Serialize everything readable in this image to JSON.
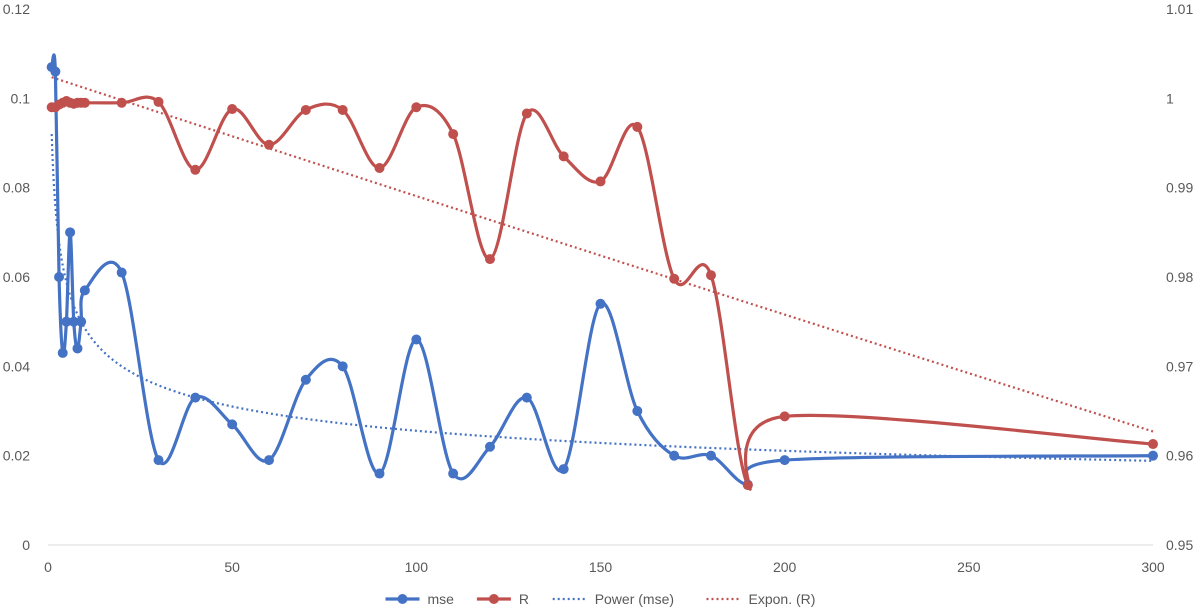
{
  "chart_data": {
    "type": "line",
    "title": "",
    "xlabel": "",
    "ylabel": "",
    "y2label": "",
    "xlim": [
      0,
      300
    ],
    "ylim": [
      0,
      0.12
    ],
    "y2lim": [
      0.95,
      1.01
    ],
    "x_ticks": [
      "0",
      "50",
      "100",
      "150",
      "200",
      "250",
      "300"
    ],
    "y_ticks": [
      "0",
      "0.02",
      "0.04",
      "0.06",
      "0.08",
      "0.1",
      "0.12"
    ],
    "y2_ticks": [
      "0.95",
      "0.96",
      "0.97",
      "0.98",
      "0.99",
      "1",
      "1.01"
    ],
    "grid": false,
    "legend_position": "bottom",
    "series": [
      {
        "name": "mse",
        "axis": "left",
        "color": "#4472C4",
        "smooth": true,
        "markers": true,
        "x": [
          1,
          2,
          3,
          4,
          5,
          6,
          7,
          8,
          9,
          10,
          20,
          30,
          40,
          50,
          60,
          70,
          80,
          90,
          100,
          110,
          120,
          130,
          140,
          150,
          160,
          170,
          180,
          190,
          200,
          300
        ],
        "y": [
          0.107,
          0.106,
          0.06,
          0.043,
          0.05,
          0.07,
          0.05,
          0.044,
          0.05,
          0.057,
          0.061,
          0.019,
          0.033,
          0.027,
          0.019,
          0.037,
          0.04,
          0.016,
          0.046,
          0.016,
          0.022,
          0.033,
          0.017,
          0.054,
          0.03,
          0.02,
          0.02,
          0.0135,
          0.019,
          0.02
        ]
      },
      {
        "name": "R",
        "axis": "right",
        "color": "#C0504D",
        "smooth": true,
        "markers": true,
        "x": [
          1,
          2,
          3,
          4,
          5,
          6,
          7,
          8,
          9,
          10,
          20,
          30,
          40,
          50,
          60,
          70,
          80,
          90,
          100,
          110,
          120,
          130,
          140,
          150,
          160,
          170,
          180,
          190,
          200,
          300
        ],
        "y": [
          0.999,
          0.999,
          0.9993,
          0.9995,
          0.9997,
          0.9995,
          0.9994,
          0.9995,
          0.9995,
          0.9995,
          0.9995,
          0.9996,
          0.992,
          0.9988,
          0.9948,
          0.9987,
          0.9987,
          0.9922,
          0.999,
          0.996,
          0.982,
          0.9983,
          0.9935,
          0.9907,
          0.9968,
          0.9798,
          0.9802,
          0.9567,
          0.9644,
          0.9613
        ]
      },
      {
        "name": "Power (mse)",
        "axis": "left",
        "color": "#4472C4",
        "style": "dotted",
        "trendline": "power",
        "fit": {
          "a": 0.092,
          "b": -0.278
        }
      },
      {
        "name": "Expon. (R)",
        "axis": "right",
        "color": "#C0504D",
        "style": "dotted",
        "trendline": "exponential",
        "fit": {
          "a": 1.0025,
          "b": -0.000135
        }
      }
    ]
  }
}
